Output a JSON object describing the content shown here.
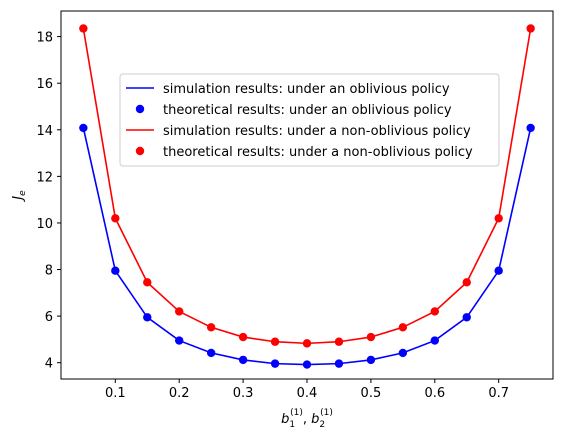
{
  "chart_data": {
    "type": "line",
    "xlabel_main": "b",
    "xlabel_sub1": "1",
    "xlabel_sup1": "(1)",
    "xlabel_sep": ", ",
    "xlabel_sub2": "2",
    "xlabel_sup2": "(1)",
    "ylabel_main": "J",
    "ylabel_sub": "e",
    "xlim": [
      0.015,
      0.785
    ],
    "ylim": [
      3.3,
      19.1
    ],
    "xticks": [
      0.1,
      0.2,
      0.3,
      0.4,
      0.5,
      0.6,
      0.7
    ],
    "xtick_labels": [
      "0.1",
      "0.2",
      "0.3",
      "0.4",
      "0.5",
      "0.6",
      "0.7"
    ],
    "yticks": [
      4,
      6,
      8,
      10,
      12,
      14,
      16,
      18
    ],
    "ytick_labels": [
      "4",
      "6",
      "8",
      "10",
      "12",
      "14",
      "16",
      "18"
    ],
    "grid": false,
    "legend_position": "upper-center",
    "x": [
      0.05,
      0.1,
      0.15,
      0.2,
      0.25,
      0.3,
      0.35,
      0.4,
      0.45,
      0.5,
      0.55,
      0.6,
      0.65,
      0.7,
      0.75
    ],
    "series": [
      {
        "name": "simulation results: under an oblivious policy",
        "kind": "line",
        "color": "#0000ff",
        "values": [
          14.08,
          7.95,
          5.95,
          4.95,
          4.42,
          4.12,
          3.96,
          3.92,
          3.96,
          4.12,
          4.42,
          4.95,
          5.95,
          7.95,
          14.08
        ]
      },
      {
        "name": "theoretical results: under an oblivious policy",
        "kind": "scatter",
        "color": "#0000ff",
        "values": [
          14.08,
          7.95,
          5.95,
          4.95,
          4.42,
          4.12,
          3.96,
          3.92,
          3.96,
          4.12,
          4.42,
          4.95,
          5.95,
          7.95,
          14.08
        ]
      },
      {
        "name": "simulation results: under a non-oblivious policy",
        "kind": "line",
        "color": "#ff0000",
        "values": [
          18.35,
          10.2,
          7.45,
          6.2,
          5.52,
          5.1,
          4.9,
          4.83,
          4.9,
          5.1,
          5.52,
          6.2,
          7.45,
          10.2,
          18.35
        ]
      },
      {
        "name": "theoretical results: under a non-oblivious policy",
        "kind": "scatter",
        "color": "#ff0000",
        "values": [
          18.35,
          10.2,
          7.45,
          6.2,
          5.52,
          5.1,
          4.9,
          4.83,
          4.9,
          5.1,
          5.52,
          6.2,
          7.45,
          10.2,
          18.35
        ]
      }
    ]
  }
}
